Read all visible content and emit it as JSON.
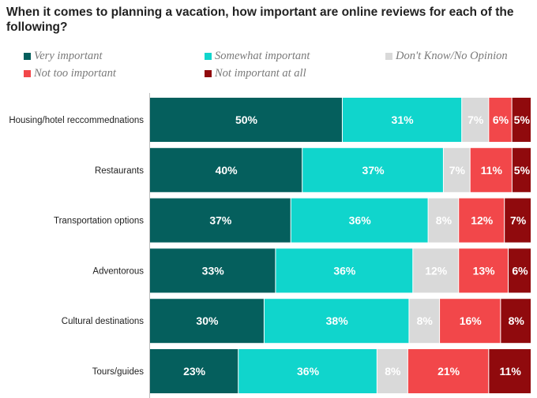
{
  "title": "When it comes to planning a vacation, how important are online reviews for each of the following?",
  "chart_data": {
    "type": "bar",
    "orientation": "horizontal",
    "stacked": true,
    "normalized": true,
    "title": "When it comes to planning a vacation, how important are online reviews for each of the following?",
    "xlabel": "",
    "ylabel": "",
    "grid": false,
    "legend_position": "top",
    "categories": [
      "Housing/hotel reccommednations",
      "Restaurants",
      "Transportation options",
      "Adventorous",
      "Cultural destinations",
      "Tours/guides"
    ],
    "series": [
      {
        "name": "Very important",
        "color": "#055F5D",
        "values": [
          50,
          40,
          37,
          33,
          30,
          23
        ]
      },
      {
        "name": "Somewhat important",
        "color": "#10D5CC",
        "values": [
          31,
          37,
          36,
          36,
          38,
          36
        ]
      },
      {
        "name": "Don't Know/No Opinion",
        "color": "#D9D9D9",
        "values": [
          7,
          7,
          8,
          12,
          8,
          8
        ]
      },
      {
        "name": "Not too important",
        "color": "#F2474A",
        "values": [
          6,
          11,
          12,
          13,
          16,
          21
        ]
      },
      {
        "name": "Not important at all",
        "color": "#900A0D",
        "values": [
          5,
          5,
          7,
          6,
          8,
          11
        ]
      }
    ]
  }
}
